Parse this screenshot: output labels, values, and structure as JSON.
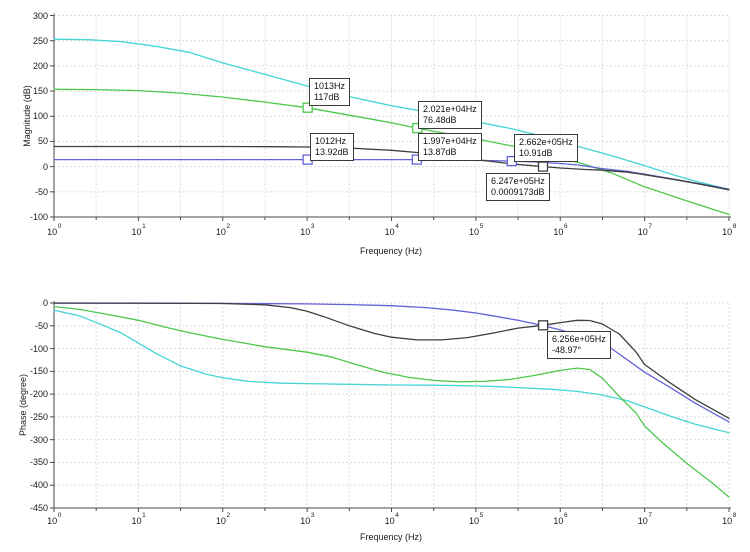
{
  "chart_data": [
    {
      "type": "line",
      "title": "",
      "xlabel": "Frequency (Hz)",
      "ylabel": "Magnitude (dB)",
      "x_scale": "log",
      "xlim_log10": [
        0,
        8
      ],
      "x_ticks_exponents": [
        0,
        1,
        2,
        3,
        4,
        5,
        6,
        7,
        8
      ],
      "ylim": [
        -100,
        300
      ],
      "y_ticks": [
        300,
        250,
        200,
        150,
        100,
        50,
        0,
        -50,
        -100
      ],
      "grid": true,
      "legend": false,
      "series": [
        {
          "name": "magnitude-trace-cyan",
          "color": "#45d5d5",
          "points": [
            [
              0,
              253
            ],
            [
              0.4,
              252
            ],
            [
              0.8,
              248
            ],
            [
              1.2,
              239
            ],
            [
              1.6,
              227
            ],
            [
              2,
              206
            ],
            [
              2.5,
              183
            ],
            [
              3,
              160
            ],
            [
              3.5,
              139
            ],
            [
              4,
              121
            ],
            [
              4.3,
              112
            ],
            [
              4.7,
              99
            ],
            [
              5,
              89
            ],
            [
              5.4,
              76
            ],
            [
              5.7,
              64
            ],
            [
              6,
              50
            ],
            [
              6.3,
              36
            ],
            [
              6.6,
              22
            ],
            [
              7,
              2
            ],
            [
              7.3,
              -14
            ],
            [
              7.6,
              -29
            ],
            [
              8,
              -45
            ]
          ]
        },
        {
          "name": "magnitude-trace-green",
          "color": "#4cc84c",
          "points": [
            [
              0,
              153.5
            ],
            [
              0.5,
              153
            ],
            [
              1,
              151
            ],
            [
              1.5,
              146
            ],
            [
              2,
              138
            ],
            [
              2.5,
              128
            ],
            [
              3,
              117
            ],
            [
              3.5,
              102
            ],
            [
              4,
              87
            ],
            [
              4.3,
              76.5
            ],
            [
              4.7,
              64
            ],
            [
              5,
              55
            ],
            [
              5.4,
              42
            ],
            [
              5.7,
              31
            ],
            [
              6,
              18
            ],
            [
              6.3,
              4
            ],
            [
              6.6,
              -12
            ],
            [
              7,
              -40
            ],
            [
              7.5,
              -68
            ],
            [
              8,
              -95
            ]
          ]
        },
        {
          "name": "magnitude-trace-blue",
          "color": "#6262d8",
          "points": [
            [
              0,
              13.92
            ],
            [
              1,
              13.92
            ],
            [
              2,
              13.92
            ],
            [
              3,
              13.92
            ],
            [
              3.5,
              13.9
            ],
            [
              4,
              13.89
            ],
            [
              4.3,
              13.87
            ],
            [
              4.7,
              13.4
            ],
            [
              5,
              12.6
            ],
            [
              5.2,
              11.9
            ],
            [
              5.43,
              10.91
            ],
            [
              5.7,
              9.2
            ],
            [
              6,
              6.2
            ],
            [
              6.2,
              3.5
            ],
            [
              6.5,
              -4
            ],
            [
              6.8,
              -9.5
            ],
            [
              7,
              -15
            ],
            [
              7.4,
              -26.5
            ],
            [
              7.7,
              -35.5
            ],
            [
              8,
              -45
            ]
          ]
        },
        {
          "name": "magnitude-trace-black",
          "color": "#3f3f3f",
          "points": [
            [
              0,
              40
            ],
            [
              1,
              40
            ],
            [
              2,
              40
            ],
            [
              2.6,
              39.6
            ],
            [
              3,
              39
            ],
            [
              3.3,
              38
            ],
            [
              3.6,
              36
            ],
            [
              4,
              32.5
            ],
            [
              4.3,
              28
            ],
            [
              4.6,
              22
            ],
            [
              5,
              14
            ],
            [
              5.2,
              10
            ],
            [
              5.43,
              5.5
            ],
            [
              5.6,
              2.8
            ],
            [
              5.8,
              0
            ],
            [
              6,
              -2.8
            ],
            [
              6.3,
              -5.8
            ],
            [
              6.5,
              -7
            ],
            [
              6.8,
              -11
            ],
            [
              7,
              -16
            ],
            [
              7.4,
              -27
            ],
            [
              7.7,
              -36
            ],
            [
              8,
              -46
            ]
          ]
        }
      ],
      "cursors": [
        {
          "freq": "1013Hz",
          "value": "117dB",
          "logf": 3.0056,
          "y": 117,
          "color": "#4cc84c"
        },
        {
          "freq": "2.021e+04Hz",
          "value": "76.48dB",
          "logf": 4.3056,
          "y": 76.48,
          "color": "#4cc84c"
        },
        {
          "freq": "1012Hz",
          "value": "13.92dB",
          "logf": 3.0052,
          "y": 13.92,
          "color": "#6262d8"
        },
        {
          "freq": "1.997e+04Hz",
          "value": "13.87dB",
          "logf": 4.3004,
          "y": 13.87,
          "color": "#6262d8"
        },
        {
          "freq": "2.662e+05Hz",
          "value": "10.91dB",
          "logf": 5.4252,
          "y": 10.91,
          "color": "#6262d8"
        },
        {
          "freq": "6.247e+05Hz",
          "value": "0.0009173dB",
          "logf": 5.7957,
          "y": 0.0009173,
          "color": "#3f3f3f"
        }
      ]
    },
    {
      "type": "line",
      "title": "",
      "xlabel": "Frequency (Hz)",
      "ylabel": "Phase (degree)",
      "x_scale": "log",
      "xlim_log10": [
        0,
        8
      ],
      "x_ticks_exponents": [
        0,
        1,
        2,
        3,
        4,
        5,
        6,
        7,
        8
      ],
      "ylim": [
        -450,
        0
      ],
      "y_ticks": [
        0,
        -50,
        -100,
        -150,
        -200,
        -250,
        -300,
        -350,
        -400,
        -450
      ],
      "grid": true,
      "legend": false,
      "series": [
        {
          "name": "phase-trace-cyan",
          "color": "#45d5d5",
          "points": [
            [
              0,
              -16
            ],
            [
              0.3,
              -28
            ],
            [
              0.6,
              -50
            ],
            [
              0.8,
              -66
            ],
            [
              1,
              -88
            ],
            [
              1.2,
              -110
            ],
            [
              1.5,
              -138
            ],
            [
              1.8,
              -156
            ],
            [
              2,
              -164
            ],
            [
              2.3,
              -172
            ],
            [
              2.7,
              -176
            ],
            [
              3,
              -177
            ],
            [
              3.5,
              -178.5
            ],
            [
              4,
              -180
            ],
            [
              4.5,
              -180.5
            ],
            [
              5,
              -182
            ],
            [
              5.3,
              -184
            ],
            [
              5.6,
              -186.5
            ],
            [
              5.9,
              -189.5
            ],
            [
              6.2,
              -194
            ],
            [
              6.5,
              -202
            ],
            [
              6.8,
              -215
            ],
            [
              7,
              -228
            ],
            [
              7.3,
              -248
            ],
            [
              7.6,
              -266
            ],
            [
              8,
              -285
            ]
          ]
        },
        {
          "name": "phase-trace-green",
          "color": "#4cc84c",
          "points": [
            [
              0,
              -8
            ],
            [
              0.3,
              -14
            ],
            [
              0.6,
              -24
            ],
            [
              1,
              -38
            ],
            [
              1.3,
              -52
            ],
            [
              1.6,
              -65
            ],
            [
              2,
              -80
            ],
            [
              2.5,
              -96
            ],
            [
              3,
              -108
            ],
            [
              3.3,
              -119
            ],
            [
              3.6,
              -136
            ],
            [
              3.9,
              -152
            ],
            [
              4.2,
              -163
            ],
            [
              4.5,
              -170
            ],
            [
              4.8,
              -173
            ],
            [
              5.1,
              -172
            ],
            [
              5.4,
              -168
            ],
            [
              5.7,
              -159
            ],
            [
              6,
              -148
            ],
            [
              6.2,
              -143
            ],
            [
              6.35,
              -146
            ],
            [
              6.5,
              -165
            ],
            [
              6.7,
              -205
            ],
            [
              6.9,
              -242
            ],
            [
              7,
              -270
            ],
            [
              7.2,
              -305
            ],
            [
              7.5,
              -352
            ],
            [
              7.8,
              -395
            ],
            [
              8,
              -426
            ]
          ]
        },
        {
          "name": "phase-trace-blue",
          "color": "#6262d8",
          "points": [
            [
              0,
              -0.4
            ],
            [
              1,
              -0.5
            ],
            [
              2,
              -0.9
            ],
            [
              3,
              -2
            ],
            [
              3.5,
              -3.5
            ],
            [
              4,
              -6
            ],
            [
              4.4,
              -10
            ],
            [
              4.7,
              -15
            ],
            [
              5,
              -22
            ],
            [
              5.2,
              -28
            ],
            [
              5.5,
              -38
            ],
            [
              5.8,
              -50
            ],
            [
              6,
              -59
            ],
            [
              6.3,
              -76
            ],
            [
              6.6,
              -99
            ],
            [
              7,
              -152
            ],
            [
              7.3,
              -185
            ],
            [
              7.6,
              -220
            ],
            [
              8,
              -261
            ]
          ]
        },
        {
          "name": "phase-trace-black",
          "color": "#3f3f3f",
          "points": [
            [
              0,
              -0.1
            ],
            [
              1,
              -0.2
            ],
            [
              2,
              -1
            ],
            [
              2.5,
              -4
            ],
            [
              2.8,
              -10
            ],
            [
              3,
              -18
            ],
            [
              3.2,
              -30
            ],
            [
              3.5,
              -50
            ],
            [
              3.8,
              -67
            ],
            [
              4,
              -75
            ],
            [
              4.3,
              -81
            ],
            [
              4.6,
              -81
            ],
            [
              4.9,
              -76
            ],
            [
              5.2,
              -66
            ],
            [
              5.5,
              -55
            ],
            [
              5.8,
              -48.97
            ],
            [
              6,
              -43
            ],
            [
              6.2,
              -38
            ],
            [
              6.35,
              -38.5
            ],
            [
              6.5,
              -46
            ],
            [
              6.7,
              -68
            ],
            [
              6.9,
              -108
            ],
            [
              7,
              -135
            ],
            [
              7.3,
              -175
            ],
            [
              7.6,
              -212
            ],
            [
              8,
              -253
            ]
          ]
        }
      ],
      "cursors": [
        {
          "freq": "6.256e+05Hz",
          "value": "-48.97°",
          "logf": 5.7963,
          "y": -48.97,
          "color": "#3f3f3f"
        }
      ]
    }
  ],
  "colors": {
    "background": "#ffffff",
    "grid": "#dcdcdc",
    "axis": "#4a4a4a",
    "trace_cyan": "#45d5d5",
    "trace_green": "#4cc84c",
    "trace_blue": "#6262d8",
    "trace_black": "#3f3f3f"
  }
}
